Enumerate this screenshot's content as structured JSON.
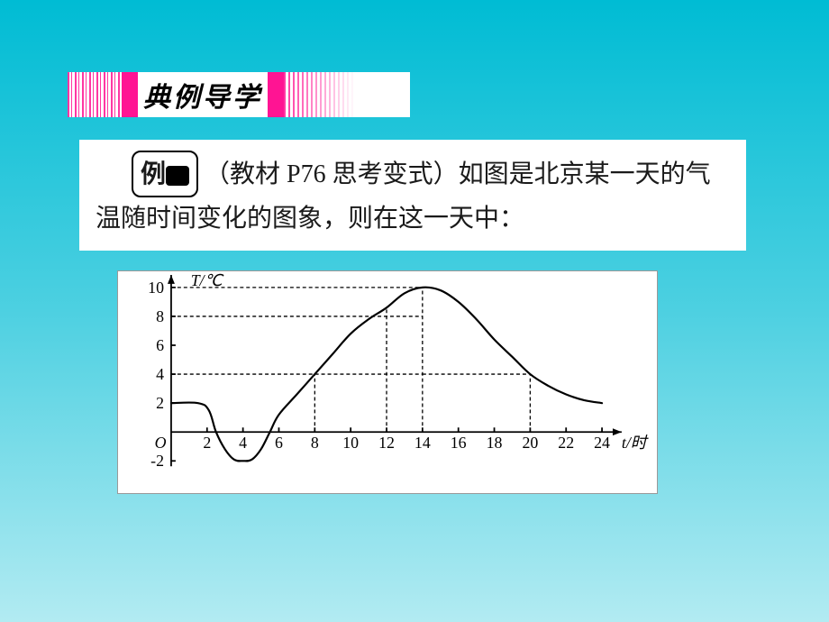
{
  "header": {
    "title": "典例导学"
  },
  "example": {
    "label_prefix": "例",
    "source": "（教材 P76 思考变式）",
    "text": "如图是北京某一天的气温随时间变化的图象，则在这一天中："
  },
  "chart": {
    "type": "line",
    "y_axis": {
      "label": "T/℃",
      "min": -2,
      "max": 10,
      "ticks": [
        -2,
        2,
        4,
        6,
        8,
        10
      ],
      "label_fontsize": 18
    },
    "x_axis": {
      "label": "t/时",
      "min": 0,
      "max": 24,
      "ticks": [
        2,
        4,
        6,
        8,
        10,
        12,
        14,
        16,
        18,
        20,
        22,
        24
      ],
      "label_fontsize": 18
    },
    "reference_lines_y": [
      4,
      8,
      10
    ],
    "reference_lines_x": [
      8,
      12,
      14,
      20
    ],
    "curve_points": [
      [
        0,
        2
      ],
      [
        1.5,
        2
      ],
      [
        2.1,
        1.5
      ],
      [
        2.5,
        0
      ],
      [
        3,
        -1.2
      ],
      [
        3.5,
        -1.9
      ],
      [
        4,
        -2
      ],
      [
        4.5,
        -1.9
      ],
      [
        5,
        -1.2
      ],
      [
        5.5,
        0
      ],
      [
        6,
        1.2
      ],
      [
        7,
        2.6
      ],
      [
        8,
        4
      ],
      [
        9,
        5.4
      ],
      [
        10,
        6.8
      ],
      [
        11,
        7.8
      ],
      [
        12,
        8.6
      ],
      [
        13,
        9.6
      ],
      [
        14,
        10
      ],
      [
        15,
        9.8
      ],
      [
        16,
        9
      ],
      [
        17,
        7.8
      ],
      [
        18,
        6.4
      ],
      [
        19,
        5.2
      ],
      [
        20,
        4
      ],
      [
        21,
        3.2
      ],
      [
        22,
        2.6
      ],
      [
        23,
        2.2
      ],
      [
        24,
        2
      ]
    ],
    "colors": {
      "axis": "#000000",
      "curve": "#000000",
      "dashed": "#000000",
      "background": "#ffffff"
    },
    "stroke_width": {
      "axis": 1.8,
      "curve": 2.2,
      "dashed": 1.3
    },
    "dash_pattern": "4,3",
    "tick_size": 5,
    "origin_label": "O"
  }
}
